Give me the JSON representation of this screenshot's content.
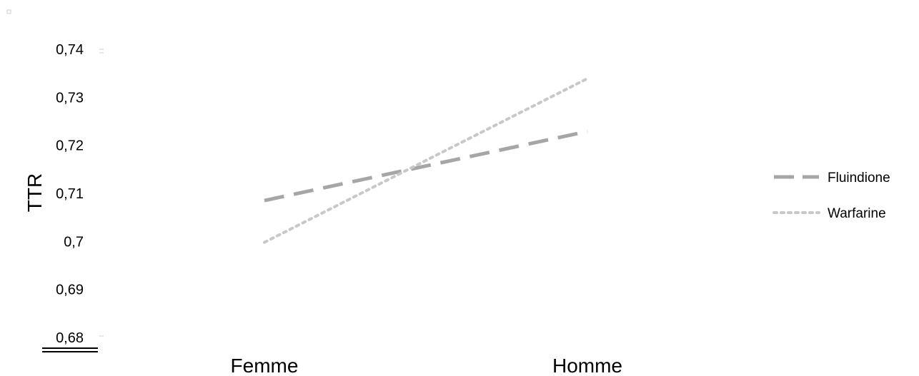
{
  "chart_data": {
    "type": "line",
    "title": "",
    "xlabel": "",
    "ylabel": "TTR",
    "categories": [
      "Femme",
      "Homme"
    ],
    "ylim": [
      0.68,
      0.74
    ],
    "yticks": [
      "0,68",
      "0,69",
      "0,7",
      "0,71",
      "0,72",
      "0,73",
      "0,74"
    ],
    "yticks_values": [
      0.68,
      0.69,
      0.7,
      0.71,
      0.72,
      0.73,
      0.74
    ],
    "grid": false,
    "legend_position": "right",
    "series": [
      {
        "name": "Fluindione",
        "values": [
          0.7085,
          0.7229
        ],
        "color": "#a6a6a6",
        "style": "dashed"
      },
      {
        "name": "Warfarine",
        "values": [
          0.6998,
          0.7339
        ],
        "color": "#c8c8c8",
        "style": "dotted"
      }
    ]
  }
}
